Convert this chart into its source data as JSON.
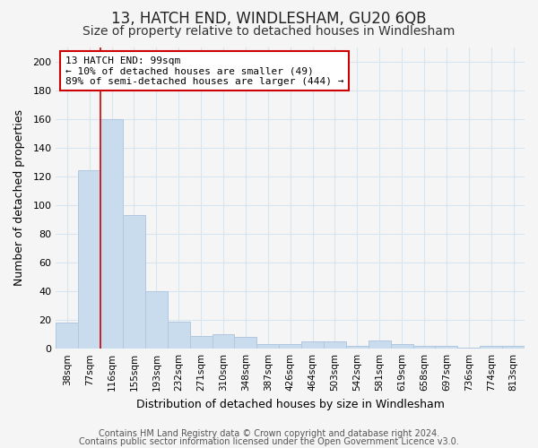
{
  "title": "13, HATCH END, WINDLESHAM, GU20 6QB",
  "subtitle": "Size of property relative to detached houses in Windlesham",
  "xlabel": "Distribution of detached houses by size in Windlesham",
  "ylabel": "Number of detached properties",
  "categories": [
    "38sqm",
    "77sqm",
    "116sqm",
    "155sqm",
    "193sqm",
    "232sqm",
    "271sqm",
    "310sqm",
    "348sqm",
    "387sqm",
    "426sqm",
    "464sqm",
    "503sqm",
    "542sqm",
    "581sqm",
    "619sqm",
    "658sqm",
    "697sqm",
    "736sqm",
    "774sqm",
    "813sqm"
  ],
  "values": [
    18,
    124,
    160,
    93,
    40,
    19,
    9,
    10,
    8,
    3,
    3,
    5,
    5,
    2,
    6,
    3,
    2,
    2,
    1,
    2,
    2
  ],
  "bar_color": "#c9dcee",
  "bar_edge_color": "#b0c8e0",
  "red_line_x": 1.5,
  "annotation_title": "13 HATCH END: 99sqm",
  "annotation_line1": "← 10% of detached houses are smaller (49)",
  "annotation_line2": "89% of semi-detached houses are larger (444) →",
  "annotation_box_color": "#ffffff",
  "annotation_border_color": "#cc0000",
  "ylim": [
    0,
    210
  ],
  "yticks": [
    0,
    20,
    40,
    60,
    80,
    100,
    120,
    140,
    160,
    180,
    200
  ],
  "footer1": "Contains HM Land Registry data © Crown copyright and database right 2024.",
  "footer2": "Contains public sector information licensed under the Open Government Licence v3.0.",
  "background_color": "#f5f5f5",
  "plot_bg_color": "#f5f5f5",
  "grid_color": "#d8e4f0",
  "title_fontsize": 12,
  "subtitle_fontsize": 10,
  "footer_fontsize": 7
}
